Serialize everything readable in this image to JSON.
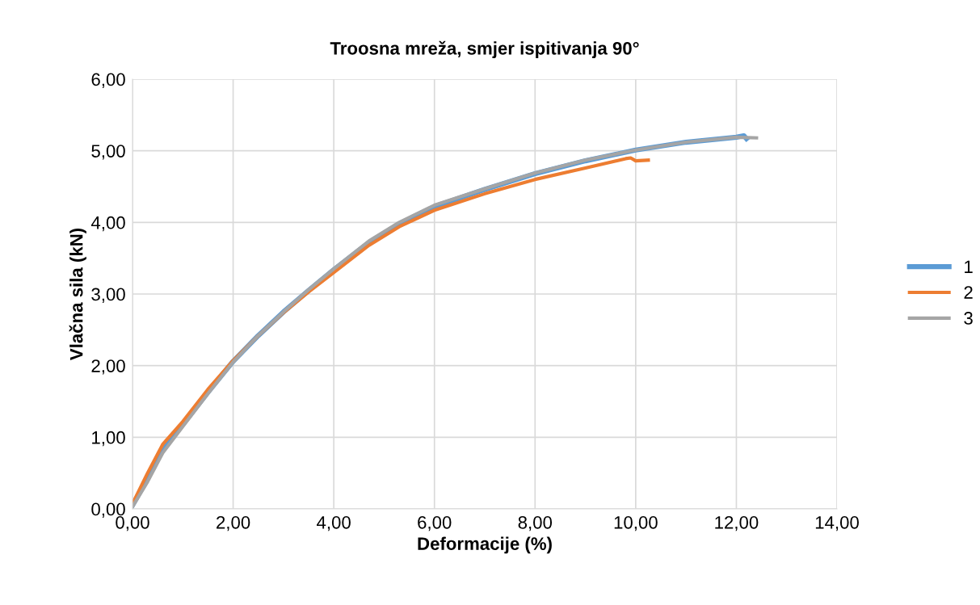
{
  "chart_data": {
    "type": "line",
    "title": "Troosna mreža, smjer ispitivanja 90°",
    "xlabel": "Deformacije (%)",
    "ylabel": "Vlačna sila (kN)",
    "xlim": [
      0,
      14
    ],
    "ylim": [
      0,
      6
    ],
    "xticks": [
      {
        "value": 0,
        "label": "0,00"
      },
      {
        "value": 2,
        "label": "2,00"
      },
      {
        "value": 4,
        "label": "4,00"
      },
      {
        "value": 6,
        "label": "6,00"
      },
      {
        "value": 8,
        "label": "8,00"
      },
      {
        "value": 10,
        "label": "10,00"
      },
      {
        "value": 12,
        "label": "12,00"
      },
      {
        "value": 14,
        "label": "14,00"
      }
    ],
    "yticks": [
      {
        "value": 0,
        "label": "0,00"
      },
      {
        "value": 1,
        "label": "1,00"
      },
      {
        "value": 2,
        "label": "2,00"
      },
      {
        "value": 3,
        "label": "3,00"
      },
      {
        "value": 4,
        "label": "4,00"
      },
      {
        "value": 5,
        "label": "5,00"
      },
      {
        "value": 6,
        "label": "6,00"
      }
    ],
    "grid": true,
    "legend": "right",
    "marker": "none",
    "line_style": "solid",
    "series": [
      {
        "name": "1",
        "color": "#5b9bd5",
        "x": [
          0,
          0.3,
          0.6,
          1,
          1.5,
          2,
          2.5,
          3,
          3.5,
          4,
          4.7,
          5.3,
          6,
          7,
          8,
          9,
          10,
          11,
          12,
          12.15,
          12.2
        ],
        "values": [
          0.05,
          0.42,
          0.82,
          1.18,
          1.63,
          2.06,
          2.42,
          2.75,
          3.05,
          3.34,
          3.72,
          3.98,
          4.22,
          4.46,
          4.68,
          4.86,
          5.01,
          5.12,
          5.19,
          5.21,
          5.17
        ]
      },
      {
        "name": "2",
        "color": "#ed7d31",
        "x": [
          0,
          0.3,
          0.6,
          1,
          1.5,
          2,
          2.5,
          3,
          3.5,
          4,
          4.7,
          5.3,
          6,
          7,
          8,
          9,
          9.8,
          9.9,
          10,
          10.25
        ],
        "values": [
          0.07,
          0.5,
          0.9,
          1.22,
          1.67,
          2.07,
          2.42,
          2.74,
          3.03,
          3.3,
          3.68,
          3.94,
          4.17,
          4.4,
          4.6,
          4.76,
          4.89,
          4.9,
          4.86,
          4.87
        ]
      },
      {
        "name": "3",
        "color": "#a5a5a5",
        "x": [
          0,
          0.3,
          0.6,
          1,
          1.5,
          2,
          2.5,
          3,
          3.5,
          4,
          4.7,
          5.3,
          6,
          7,
          8,
          9,
          10,
          11,
          12,
          12.4
        ],
        "values": [
          0.03,
          0.38,
          0.78,
          1.15,
          1.61,
          2.05,
          2.42,
          2.75,
          3.06,
          3.35,
          3.74,
          4.0,
          4.24,
          4.47,
          4.69,
          4.87,
          5.01,
          5.12,
          5.19,
          5.18
        ]
      }
    ]
  }
}
